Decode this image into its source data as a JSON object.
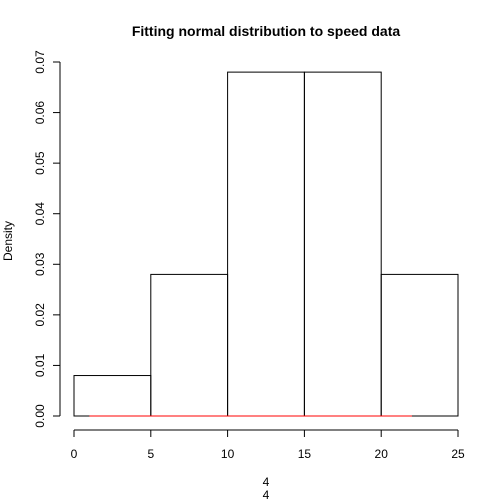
{
  "chart_data": {
    "type": "histogram",
    "title": "Fitting normal distribution to speed data",
    "xlabel_lines": [
      "4",
      "4"
    ],
    "ylabel": "Density",
    "bins": [
      {
        "start": 0,
        "end": 5,
        "density": 0.008
      },
      {
        "start": 5,
        "end": 10,
        "density": 0.028
      },
      {
        "start": 10,
        "end": 15,
        "density": 0.068
      },
      {
        "start": 15,
        "end": 20,
        "density": 0.068
      },
      {
        "start": 20,
        "end": 25,
        "density": 0.028
      }
    ],
    "x_ticks": [
      0,
      5,
      10,
      15,
      20,
      25
    ],
    "y_ticks": [
      "0.00",
      "0.01",
      "0.02",
      "0.03",
      "0.04",
      "0.05",
      "0.06",
      "0.07"
    ],
    "xlim": [
      0,
      25
    ],
    "ylim": [
      0,
      0.07
    ],
    "fit_curve": {
      "name": "normal fit",
      "color": "#ff0000",
      "x": [
        1,
        22
      ],
      "y": [
        0,
        0
      ]
    },
    "grid": false
  }
}
